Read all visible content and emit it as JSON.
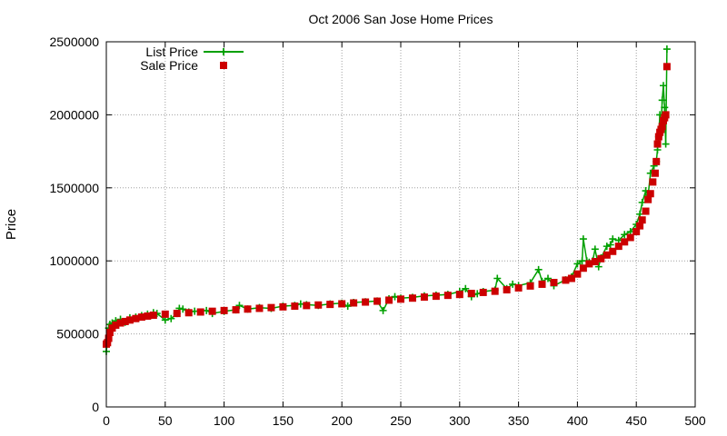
{
  "chart_data": {
    "type": "line",
    "title": "Oct 2006 San Jose Home Prices",
    "xlabel": "",
    "ylabel": "Price",
    "xlim": [
      0,
      500
    ],
    "ylim": [
      0,
      2500000
    ],
    "xticks": [
      "0",
      "50",
      "100",
      "150",
      "200",
      "250",
      "300",
      "350",
      "400",
      "450",
      "500"
    ],
    "yticks": [
      "0",
      "500000",
      "1000000",
      "1500000",
      "2000000",
      "2500000"
    ],
    "grid": true,
    "legend": "top-left",
    "colors": {
      "list": "#00a000",
      "sale": "#cc0000"
    },
    "series": [
      {
        "name": "List Price",
        "style": "line+crosses",
        "x": [
          0,
          1,
          2,
          3,
          5,
          8,
          12,
          16,
          20,
          25,
          30,
          35,
          40,
          43,
          50,
          55,
          60,
          62,
          65,
          70,
          75,
          85,
          90,
          100,
          110,
          113,
          120,
          130,
          140,
          150,
          160,
          165,
          170,
          180,
          190,
          200,
          205,
          210,
          220,
          230,
          235,
          240,
          245,
          250,
          260,
          270,
          280,
          290,
          300,
          305,
          310,
          315,
          320,
          330,
          332,
          340,
          345,
          350,
          360,
          367,
          370,
          375,
          380,
          390,
          395,
          400,
          404,
          405,
          408,
          410,
          413,
          415,
          418,
          420,
          425,
          428,
          430,
          435,
          440,
          445,
          450,
          453,
          455,
          458,
          460,
          462,
          465,
          467,
          468,
          469,
          470,
          471,
          472,
          473,
          474,
          475,
          476
        ],
        "y": [
          380000,
          450000,
          540000,
          565000,
          575000,
          590000,
          600000,
          580000,
          610000,
          615000,
          625000,
          635000,
          645000,
          640000,
          595000,
          605000,
          640000,
          675000,
          670000,
          650000,
          655000,
          660000,
          640000,
          655000,
          665000,
          695000,
          670000,
          680000,
          675000,
          690000,
          695000,
          705000,
          700000,
          695000,
          705000,
          710000,
          690000,
          715000,
          720000,
          725000,
          660000,
          740000,
          755000,
          745000,
          750000,
          760000,
          765000,
          770000,
          790000,
          810000,
          755000,
          775000,
          790000,
          800000,
          880000,
          810000,
          840000,
          830000,
          850000,
          940000,
          860000,
          880000,
          830000,
          870000,
          890000,
          980000,
          1000000,
          1150000,
          1000000,
          990000,
          1000000,
          1080000,
          960000,
          1020000,
          1100000,
          1110000,
          1150000,
          1140000,
          1180000,
          1200000,
          1250000,
          1320000,
          1400000,
          1480000,
          1450000,
          1600000,
          1650000,
          1680000,
          1760000,
          1850000,
          2000000,
          1900000,
          2100000,
          2200000,
          2050000,
          1800000,
          2450000
        ]
      },
      {
        "name": "Sale Price",
        "style": "squares",
        "x": [
          0,
          1,
          2,
          3,
          5,
          8,
          12,
          16,
          20,
          25,
          30,
          35,
          40,
          50,
          60,
          70,
          80,
          90,
          100,
          110,
          120,
          130,
          140,
          150,
          160,
          170,
          180,
          190,
          200,
          210,
          220,
          230,
          240,
          250,
          260,
          270,
          280,
          290,
          300,
          310,
          320,
          330,
          340,
          350,
          360,
          370,
          380,
          390,
          395,
          400,
          405,
          410,
          415,
          420,
          425,
          430,
          435,
          440,
          445,
          450,
          453,
          455,
          458,
          460,
          462,
          464,
          466,
          467,
          468,
          469,
          470,
          471,
          472,
          473,
          474,
          475,
          476
        ],
        "y": [
          430000,
          440000,
          470000,
          510000,
          540000,
          560000,
          575000,
          585000,
          595000,
          605000,
          615000,
          622000,
          628000,
          635000,
          640000,
          645000,
          650000,
          655000,
          660000,
          665000,
          670000,
          675000,
          680000,
          685000,
          690000,
          694000,
          698000,
          702000,
          706000,
          712000,
          718000,
          724000,
          731000,
          738000,
          745000,
          752000,
          758000,
          764000,
          770000,
          777000,
          784000,
          792000,
          802000,
          815000,
          828000,
          840000,
          852000,
          868000,
          880000,
          910000,
          950000,
          980000,
          995000,
          1015000,
          1040000,
          1065000,
          1100000,
          1130000,
          1160000,
          1200000,
          1240000,
          1280000,
          1340000,
          1420000,
          1460000,
          1540000,
          1600000,
          1680000,
          1800000,
          1850000,
          1880000,
          1900000,
          1920000,
          1960000,
          1980000,
          2000000,
          2330000
        ]
      }
    ]
  }
}
